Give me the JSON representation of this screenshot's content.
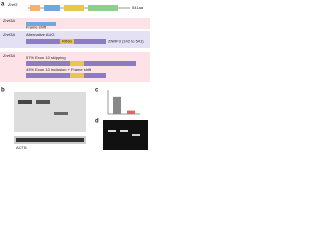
{
  "panels": {
    "a": {
      "label": "a",
      "gene": "Znrf3",
      "gene_length": "541aa",
      "domain": "RING",
      "rows": [
        {
          "allele": "Znrf3Δ",
          "lines": [
            "Frame shift"
          ]
        },
        {
          "allele": "Znrf3Δ",
          "lines": [
            "Alternative AUG"
          ],
          "product": "ZNRF3 (142 to 541)"
        },
        {
          "allele": "Znrf3Δ",
          "lines": [
            "57% Exon 10 skipping",
            "43% Exon 10 inclusion + Frame shift"
          ]
        }
      ]
    },
    "b": {
      "label": "b",
      "loading_control": "ACTB"
    },
    "c": {
      "label": "c",
      "values": [
        1.0,
        0.2
      ],
      "ylim": [
        0,
        1.4
      ]
    },
    "d": {
      "label": "d"
    }
  }
}
